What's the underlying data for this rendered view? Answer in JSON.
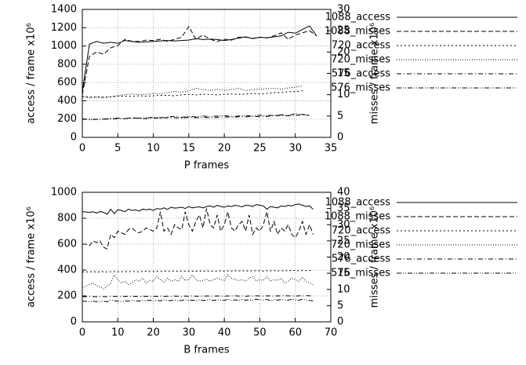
{
  "chart_data": [
    {
      "type": "line",
      "xlabel": "P frames",
      "ylabel": "access / frame x10⁶",
      "y2label": "misses / frame x10⁶",
      "x": [
        0,
        1,
        2,
        3,
        4,
        5,
        6,
        7,
        8,
        9,
        10,
        11,
        12,
        13,
        14,
        15,
        16,
        17,
        18,
        19,
        20,
        21,
        22,
        23,
        24,
        25,
        26,
        27,
        28,
        29,
        30,
        31,
        32,
        33
      ],
      "xlim": [
        0,
        35
      ],
      "xticks": [
        0,
        5,
        10,
        15,
        20,
        25,
        30,
        35
      ],
      "ylim": [
        0,
        1400
      ],
      "yticks": [
        0,
        200,
        400,
        600,
        800,
        1000,
        1200,
        1400
      ],
      "y2lim": [
        0,
        30
      ],
      "y2ticks": [
        0,
        5,
        10,
        15,
        20,
        25,
        30
      ],
      "grid": true,
      "legend": "right",
      "series": [
        {
          "name": "1088_access",
          "color": "#000000",
          "linestyle": "solid",
          "values": [
            500,
            1020,
            1050,
            1030,
            1040,
            1030,
            1060,
            1050,
            1040,
            1045,
            1050,
            1055,
            1060,
            1055,
            1060,
            1065,
            1080,
            1070,
            1075,
            1070,
            1060,
            1070,
            1085,
            1100,
            1080,
            1095,
            1090,
            1100,
            1110,
            1150,
            1140,
            1180,
            1220,
            1110
          ]
        },
        {
          "name": "1088_misses",
          "color": "#000000",
          "linestyle": "dashed",
          "axis": "y2",
          "values": [
            10,
            19,
            20,
            19.5,
            21,
            21.5,
            23,
            22.5,
            22.5,
            22.8,
            22.7,
            23,
            22.5,
            23,
            23.5,
            26,
            23,
            24,
            23,
            22.5,
            23,
            22.8,
            23.5,
            23.5,
            23.2,
            23.5,
            23.3,
            23.8,
            24.5,
            23,
            24,
            24.5,
            25,
            23.8
          ]
        },
        {
          "name": "720_access",
          "color": "#000000",
          "linestyle": "dotted",
          "values": [
            450,
            440,
            445,
            440,
            445,
            450,
            450,
            450,
            455,
            450,
            455,
            460,
            460,
            455,
            465,
            470,
            465,
            470,
            470,
            465,
            470,
            475,
            470,
            475,
            480,
            475,
            480,
            490,
            490,
            500,
            500,
            510,
            null,
            null
          ]
        },
        {
          "name": "720_misses",
          "color": "#000000",
          "linestyle": "finedotted",
          "axis": "y2",
          "values": [
            9.5,
            9.3,
            9.4,
            9.3,
            9.5,
            9.8,
            10,
            10.2,
            10,
            10.1,
            10.3,
            10.2,
            10.5,
            10.8,
            10.6,
            10.9,
            11.5,
            11.2,
            11,
            11.3,
            11,
            11.2,
            11.5,
            11,
            11.2,
            11.3,
            11.4,
            11.5,
            11.3,
            11.6,
            11.8,
            12,
            null,
            null
          ]
        },
        {
          "name": "576_access",
          "color": "#000000",
          "linestyle": "dashdot",
          "values": [
            200,
            195,
            198,
            200,
            200,
            205,
            205,
            210,
            210,
            205,
            212,
            210,
            215,
            215,
            210,
            220,
            215,
            220,
            215,
            220,
            225,
            220,
            225,
            225,
            230,
            225,
            230,
            235,
            240,
            235,
            240,
            245,
            240,
            null
          ]
        },
        {
          "name": "576_misses",
          "color": "#000000",
          "linestyle": "dashdotdot",
          "axis": "y2",
          "values": [
            4.3,
            4.2,
            4.2,
            4.3,
            4.4,
            4.5,
            4.4,
            4.6,
            4.5,
            4.6,
            4.7,
            4.6,
            4.8,
            4.9,
            4.7,
            4.9,
            4.8,
            5,
            4.9,
            5,
            5.1,
            4.9,
            5,
            5.1,
            5,
            5.2,
            5.1,
            5.2,
            5.3,
            5.2,
            5.5,
            5.4,
            5.1,
            null
          ]
        }
      ]
    },
    {
      "type": "line",
      "xlabel": "B frames",
      "ylabel": "access / frame x10⁶",
      "y2label": "misses / frame x10⁶",
      "x": [
        0,
        1,
        2,
        3,
        4,
        5,
        6,
        7,
        8,
        9,
        10,
        11,
        12,
        13,
        14,
        15,
        16,
        17,
        18,
        19,
        20,
        21,
        22,
        23,
        24,
        25,
        26,
        27,
        28,
        29,
        30,
        31,
        32,
        33,
        34,
        35,
        36,
        37,
        38,
        39,
        40,
        41,
        42,
        43,
        44,
        45,
        46,
        47,
        48,
        49,
        50,
        51,
        52,
        53,
        54,
        55,
        56,
        57,
        58,
        59,
        60,
        61,
        62,
        63,
        64,
        65
      ],
      "xlim": [
        0,
        70
      ],
      "xticks": [
        0,
        10,
        20,
        30,
        40,
        50,
        60,
        70
      ],
      "ylim": [
        0,
        1000
      ],
      "yticks": [
        0,
        200,
        400,
        600,
        800,
        1000
      ],
      "y2lim": [
        0,
        40
      ],
      "y2ticks": [
        0,
        5,
        10,
        15,
        20,
        25,
        30,
        35,
        40
      ],
      "grid": true,
      "legend": "right",
      "series": [
        {
          "name": "1088_access",
          "color": "#000000",
          "linestyle": "solid",
          "values": [
            850,
            848,
            845,
            850,
            840,
            852,
            845,
            830,
            870,
            835,
            865,
            860,
            850,
            870,
            860,
            865,
            855,
            870,
            865,
            870,
            860,
            875,
            870,
            880,
            868,
            885,
            878,
            880,
            885,
            875,
            890,
            880,
            885,
            888,
            880,
            890,
            895,
            885,
            900,
            890,
            885,
            895,
            890,
            900,
            895,
            888,
            900,
            898,
            890,
            905,
            900,
            895,
            870,
            890,
            885,
            880,
            895,
            890,
            900,
            895,
            905,
            910,
            900,
            890,
            895,
            870
          ]
        },
        {
          "name": "1088_misses",
          "color": "#000000",
          "linestyle": "dashed",
          "axis": "y2",
          "values": [
            24,
            24,
            23.5,
            25,
            24.5,
            25,
            23,
            22.5,
            27,
            26,
            28,
            27.5,
            27,
            28.5,
            29,
            28,
            27.5,
            28,
            29,
            28.5,
            28,
            29,
            34,
            28,
            29,
            27,
            30,
            29,
            28.5,
            34,
            30,
            28,
            31,
            33,
            29,
            35,
            30,
            29,
            33,
            28,
            30,
            34,
            29,
            28,
            30,
            31,
            28,
            33,
            27,
            29,
            28,
            30,
            34,
            28,
            31,
            27,
            29,
            28,
            30,
            27,
            26,
            28,
            31,
            27,
            30,
            27
          ]
        },
        {
          "name": "720_access",
          "color": "#000000",
          "linestyle": "dotted",
          "values": [
            385,
            386,
            385,
            388,
            384,
            386,
            387,
            385,
            386,
            388,
            387,
            386,
            388,
            387,
            389,
            388,
            387,
            389,
            390,
            388,
            389,
            390,
            388,
            391,
            389,
            390,
            392,
            389,
            391,
            390,
            392,
            391,
            390,
            393,
            391,
            392,
            393,
            390,
            392,
            394,
            391,
            393,
            392,
            394,
            393,
            395,
            392,
            394,
            393,
            395,
            394,
            392,
            395,
            394,
            396,
            393,
            395,
            394,
            396,
            395,
            397,
            394,
            396,
            395,
            397,
            396
          ]
        },
        {
          "name": "720_misses",
          "color": "#000000",
          "linestyle": "finedotted",
          "axis": "y2",
          "values": [
            10.5,
            11,
            11.5,
            12,
            11.2,
            10.8,
            10.2,
            11,
            12,
            14.5,
            13,
            12,
            12.5,
            11.5,
            12,
            13,
            12.5,
            13.5,
            12,
            12.8,
            12.5,
            14,
            13,
            12.2,
            13.5,
            12.5,
            13,
            12.5,
            14,
            12.8,
            13,
            14.5,
            13,
            12.5,
            12.8,
            13.2,
            12.5,
            13,
            13.5,
            13,
            12.8,
            14.5,
            13.5,
            13,
            12.8,
            13,
            12.5,
            13.5,
            14,
            12.5,
            13,
            12.8,
            14,
            12.5,
            13,
            12.8,
            13.5,
            12,
            12.5,
            13.5,
            13,
            12.5,
            13.8,
            12.5,
            12,
            11.5
          ]
        },
        {
          "name": "576_access",
          "color": "#000000",
          "linestyle": "dashdot",
          "values": [
            195,
            194,
            196,
            195,
            194,
            196,
            195,
            194,
            197,
            196,
            195,
            197,
            196,
            198,
            196,
            197,
            196,
            198,
            197,
            196,
            198,
            197,
            199,
            197,
            198,
            197,
            199,
            198,
            197,
            199,
            198,
            200,
            198,
            199,
            198,
            200,
            199,
            198,
            200,
            199,
            198,
            200,
            199,
            201,
            199,
            200,
            198,
            200,
            199,
            201,
            200,
            199,
            201,
            200,
            199,
            201,
            200,
            202,
            200,
            201,
            199,
            201,
            200,
            202,
            201,
            200
          ]
        },
        {
          "name": "576_misses",
          "color": "#000000",
          "linestyle": "dashdotdot",
          "axis": "y2",
          "values": [
            6.5,
            6.3,
            6.2,
            6.4,
            6.2,
            6.3,
            6.4,
            6.2,
            6.8,
            6.5,
            6.4,
            6.3,
            6.5,
            6.4,
            6.6,
            6.5,
            6.4,
            6.6,
            6.5,
            6.7,
            6.4,
            6.6,
            6.5,
            6.8,
            6.5,
            6.6,
            6.7,
            6.5,
            6.6,
            6.8,
            6.6,
            6.7,
            6.5,
            6.8,
            6.6,
            6.7,
            6.9,
            6.6,
            6.8,
            6.7,
            6.6,
            7,
            6.7,
            6.8,
            6.6,
            6.9,
            6.7,
            6.8,
            6.6,
            7,
            6.8,
            6.7,
            6.9,
            6.6,
            6.8,
            6.7,
            6.9,
            6.8,
            6.7,
            7,
            6.8,
            6.7,
            7,
            6.8,
            6.6,
            6.5
          ]
        }
      ]
    }
  ]
}
